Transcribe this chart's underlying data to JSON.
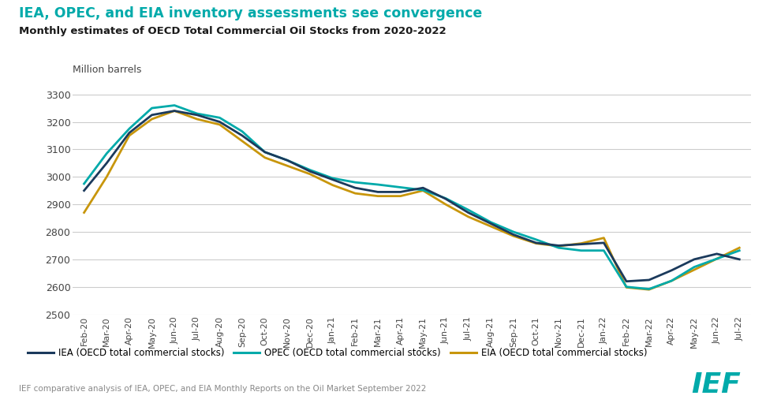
{
  "title_main": "IEA, OPEC, and EIA inventory assessments see convergence",
  "title_sub": "Monthly estimates of OECD Total Commercial Oil Stocks from 2020-2022",
  "ylabel": "Million barrels",
  "title_color": "#00AAAA",
  "subtitle_color": "#1a1a1a",
  "background_color": "#ffffff",
  "footer_text": "IEF comparative analysis of IEA, OPEC, and EIA Monthly Reports on the Oil Market September 2022",
  "ylim": [
    2500,
    3350
  ],
  "yticks": [
    2500,
    2600,
    2700,
    2800,
    2900,
    3000,
    3100,
    3200,
    3300
  ],
  "x_labels": [
    "Feb-20",
    "Mar-20",
    "Apr-20",
    "May-20",
    "Jun-20",
    "Jul-20",
    "Aug-20",
    "Sep-20",
    "Oct-20",
    "Nov-20",
    "Dec-20",
    "Jan-21",
    "Feb-21",
    "Mar-21",
    "Apr-21",
    "May-21",
    "Jun-21",
    "Jul-21",
    "Aug-21",
    "Sep-21",
    "Oct-21",
    "Nov-21",
    "Dec-21",
    "Jan-22",
    "Feb-22",
    "Mar-22",
    "Apr-22",
    "May-22",
    "Jun-22",
    "Jul-22"
  ],
  "IEA": [
    2950,
    3050,
    3160,
    3225,
    3240,
    3225,
    3200,
    3150,
    3090,
    3060,
    3020,
    2990,
    2960,
    2945,
    2945,
    2960,
    2920,
    2870,
    2830,
    2790,
    2760,
    2750,
    2755,
    2760,
    2620,
    2625,
    2660,
    2700,
    2720,
    2700
  ],
  "OPEC": [
    2975,
    3085,
    3175,
    3250,
    3260,
    3230,
    3215,
    3165,
    3090,
    3060,
    3025,
    2995,
    2980,
    2972,
    2962,
    2952,
    2922,
    2880,
    2835,
    2800,
    2772,
    2742,
    2732,
    2732,
    2600,
    2592,
    2622,
    2672,
    2702,
    2732
  ],
  "EIA": [
    2870,
    3000,
    3150,
    3210,
    3240,
    3210,
    3190,
    3130,
    3070,
    3040,
    3010,
    2970,
    2940,
    2930,
    2930,
    2950,
    2900,
    2855,
    2820,
    2785,
    2758,
    2748,
    2758,
    2778,
    2598,
    2590,
    2622,
    2662,
    2702,
    2742
  ],
  "IEA_color": "#1B3A5C",
  "OPEC_color": "#00AAAA",
  "EIA_color": "#C8960C",
  "line_width": 2.0,
  "legend_labels": [
    "IEA (OECD total commercial stocks)",
    "OPEC (OECD total commercial stocks)",
    "EIA (OECD total commercial stocks)"
  ]
}
